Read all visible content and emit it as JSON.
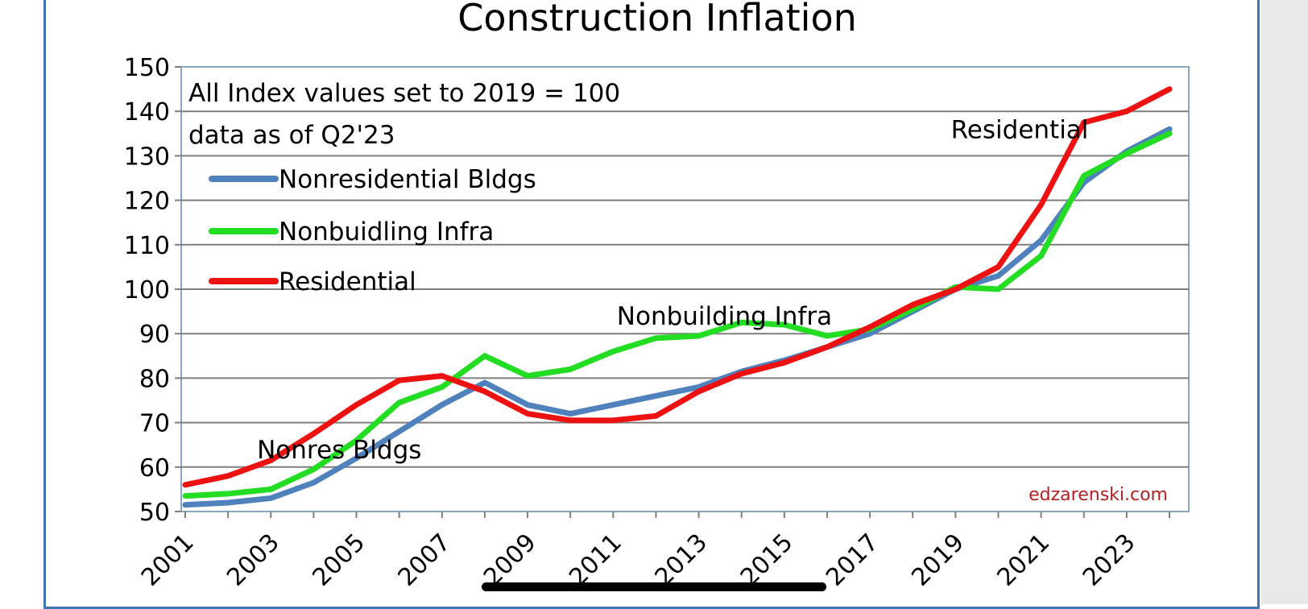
{
  "chart_data": {
    "type": "line",
    "title": "Construction Inflation",
    "notes": [
      "All Index values set to 2019 = 100",
      "data as of Q2'23"
    ],
    "ylim": [
      50,
      150
    ],
    "yticks": [
      50,
      60,
      70,
      80,
      90,
      100,
      110,
      120,
      130,
      140,
      150
    ],
    "xticks": [
      "2001",
      "2003",
      "2005",
      "2007",
      "2009",
      "2011",
      "2013",
      "2015",
      "2017",
      "2019",
      "2021",
      "2023"
    ],
    "x": [
      2001,
      2002,
      2003,
      2004,
      2005,
      2006,
      2007,
      2008,
      2009,
      2010,
      2011,
      2012,
      2013,
      2014,
      2015,
      2016,
      2017,
      2018,
      2019,
      2020,
      2021,
      2022,
      2023,
      2024
    ],
    "grid": true,
    "legend_position": "top-left",
    "series": [
      {
        "name": "Nonresidential Bldgs",
        "color": "#4f81bd",
        "values": [
          51.5,
          52,
          53,
          56.5,
          62,
          68,
          74,
          79,
          74,
          72,
          74,
          76,
          78,
          81.5,
          84,
          87,
          90,
          95,
          100,
          103,
          111,
          124,
          131,
          136
        ]
      },
      {
        "name": "Nonbuidling Infra",
        "color": "#22dd22",
        "values": [
          53.5,
          54,
          55,
          59.5,
          66,
          74.5,
          78,
          85,
          80.5,
          82,
          86,
          89,
          89.5,
          92.5,
          92,
          89.5,
          91,
          95.5,
          100.5,
          100,
          107.5,
          125.5,
          130.5,
          135
        ]
      },
      {
        "name": "Residential",
        "color": "#ee1111",
        "values": [
          56,
          58,
          61.5,
          67.5,
          74,
          79.5,
          80.5,
          77,
          72,
          70.5,
          70.5,
          71.5,
          77,
          81,
          83.5,
          87,
          91.5,
          96.5,
          100,
          105,
          119,
          137.5,
          140,
          145
        ]
      }
    ],
    "annotations": [
      {
        "text": "Residential",
        "x": 2020.5,
        "y": 134
      },
      {
        "text": "Nonbuilding Infra",
        "x": 2013.6,
        "y": 92
      },
      {
        "text": "Nonres Bldgs",
        "x": 2004.6,
        "y": 62
      }
    ],
    "credit": "edzarenski.com"
  }
}
